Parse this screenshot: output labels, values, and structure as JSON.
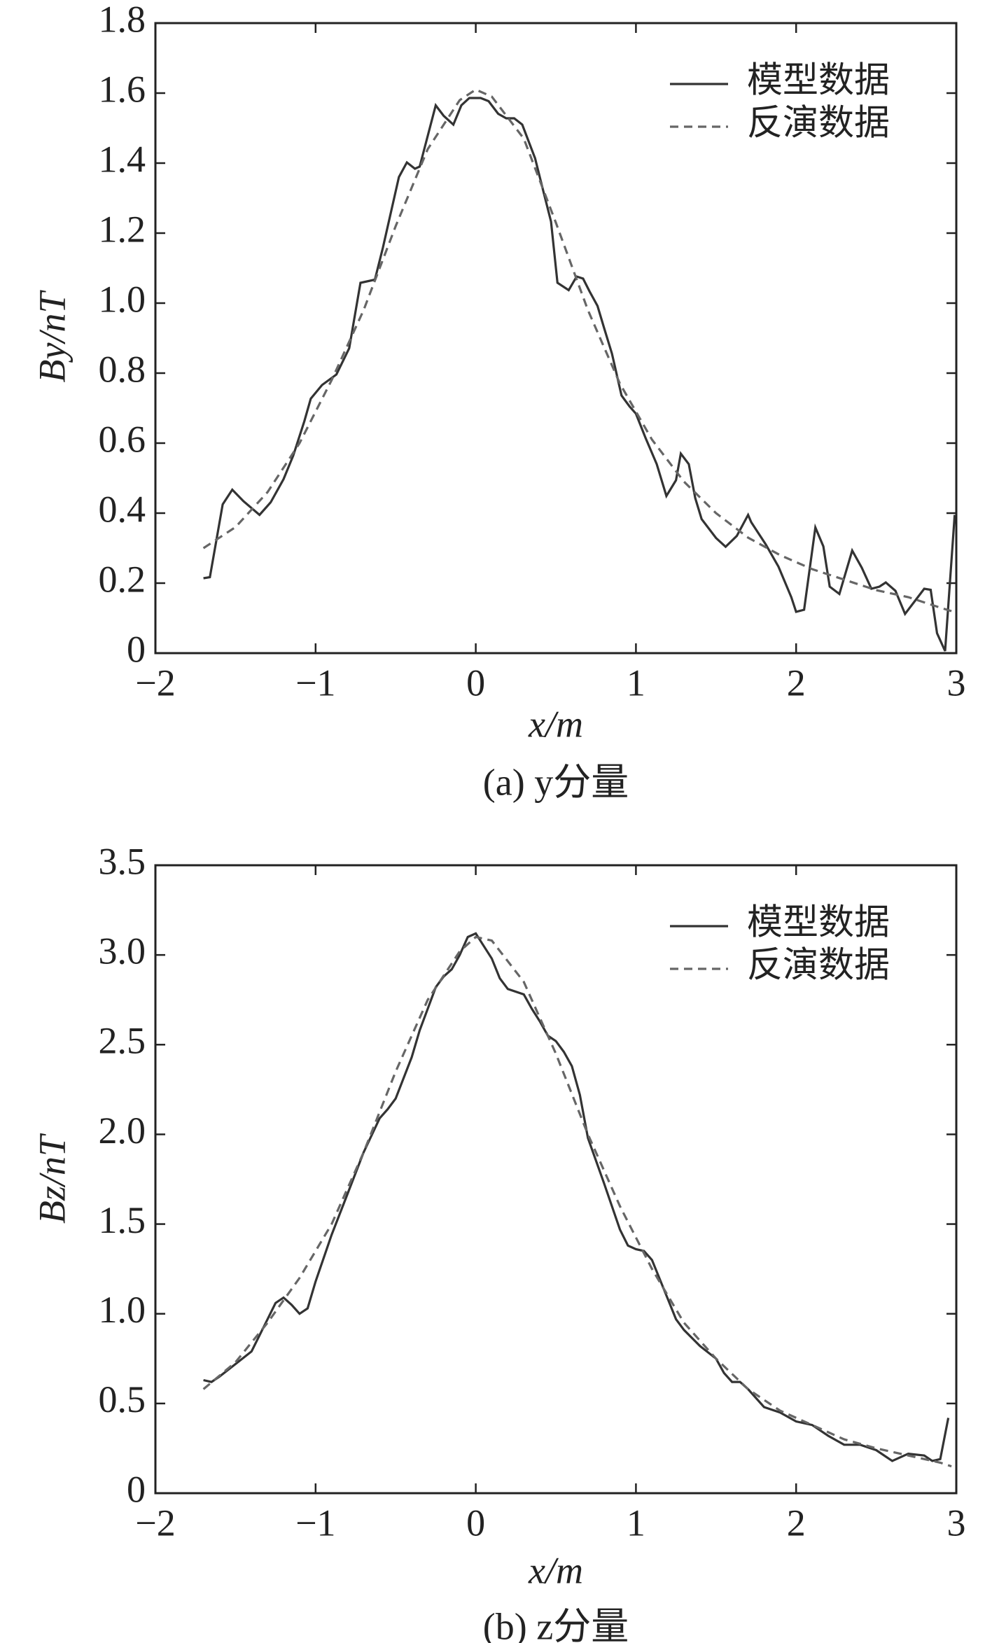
{
  "chart_data": [
    {
      "type": "line",
      "ylabel": "By/nT",
      "xlabel": "x/m",
      "caption": "(a) y分量",
      "xlim": [
        -2,
        3
      ],
      "xticks": [
        {
          "value": -2,
          "label": "−2"
        },
        {
          "value": -1,
          "label": "−1"
        },
        0,
        1,
        2,
        3
      ],
      "ylim": [
        0,
        1.8
      ],
      "yticks": [
        0,
        0.2,
        0.4,
        0.6,
        0.8,
        {
          "value": 1.0,
          "label": "1.0"
        },
        1.2,
        1.4,
        1.6,
        1.8
      ],
      "legend": "upper right",
      "series": [
        {
          "name": "模型数据",
          "color": "#333333",
          "style": "solid",
          "x": [
            -1.7,
            -1.66,
            -1.58,
            -1.52,
            -1.45,
            -1.35,
            -1.28,
            -1.2,
            -1.14,
            -1.07,
            -1.03,
            -0.96,
            -0.87,
            -0.79,
            -0.72,
            -0.63,
            -0.58,
            -0.48,
            -0.43,
            -0.38,
            -0.35,
            -0.25,
            -0.2,
            -0.14,
            -0.09,
            -0.04,
            0.03,
            0.08,
            0.14,
            0.19,
            0.24,
            0.29,
            0.37,
            0.42,
            0.47,
            0.51,
            0.58,
            0.63,
            0.67,
            0.71,
            0.76,
            0.8,
            0.85,
            0.91,
            0.96,
            1.0,
            1.06,
            1.13,
            1.19,
            1.25,
            1.28,
            1.33,
            1.37,
            1.41,
            1.5,
            1.56,
            1.63,
            1.7,
            1.72,
            1.81,
            1.89,
            1.97,
            2.0,
            2.05,
            2.12,
            2.17,
            2.21,
            2.27,
            2.35,
            2.41,
            2.47,
            2.52,
            2.56,
            2.62,
            2.68,
            2.74,
            2.8,
            2.84,
            2.88,
            2.93,
            2.99
          ],
          "values": [
            0.214,
            0.217,
            0.425,
            0.467,
            0.434,
            0.395,
            0.431,
            0.497,
            0.564,
            0.663,
            0.727,
            0.766,
            0.796,
            0.871,
            1.058,
            1.067,
            1.158,
            1.36,
            1.402,
            1.384,
            1.39,
            1.565,
            1.535,
            1.51,
            1.565,
            1.586,
            1.586,
            1.577,
            1.541,
            1.528,
            1.528,
            1.51,
            1.414,
            1.323,
            1.233,
            1.058,
            1.037,
            1.076,
            1.07,
            1.034,
            0.992,
            0.931,
            0.856,
            0.736,
            0.705,
            0.684,
            0.615,
            0.54,
            0.449,
            0.494,
            0.57,
            0.54,
            0.443,
            0.383,
            0.329,
            0.304,
            0.335,
            0.395,
            0.374,
            0.311,
            0.247,
            0.16,
            0.118,
            0.124,
            0.359,
            0.305,
            0.19,
            0.169,
            0.293,
            0.244,
            0.184,
            0.19,
            0.202,
            0.178,
            0.112,
            0.148,
            0.184,
            0.181,
            0.057,
            0.006,
            0.395
          ]
        },
        {
          "name": "反演数据",
          "color": "#666666",
          "style": "dashed",
          "x": [
            -1.7,
            -1.5,
            -1.3,
            -1.1,
            -0.9,
            -0.7,
            -0.5,
            -0.3,
            -0.1,
            0,
            0.1,
            0.3,
            0.5,
            0.7,
            0.9,
            1.1,
            1.3,
            1.5,
            1.7,
            1.9,
            2.1,
            2.3,
            2.5,
            2.7,
            2.9,
            2.97
          ],
          "values": [
            0.3,
            0.36,
            0.46,
            0.6,
            0.78,
            0.98,
            1.22,
            1.44,
            1.58,
            1.61,
            1.59,
            1.47,
            1.23,
            0.98,
            0.77,
            0.61,
            0.49,
            0.4,
            0.33,
            0.28,
            0.24,
            0.21,
            0.18,
            0.16,
            0.13,
            0.12
          ]
        }
      ]
    },
    {
      "type": "line",
      "ylabel": "Bz/nT",
      "xlabel": "x/m",
      "caption": "(b) z分量",
      "xlim": [
        -2,
        3
      ],
      "xticks": [
        {
          "value": -2,
          "label": "−2"
        },
        {
          "value": -1,
          "label": "−1"
        },
        0,
        1,
        2,
        3
      ],
      "ylim": [
        0,
        3.5
      ],
      "yticks": [
        0,
        0.5,
        {
          "value": 1.0,
          "label": "1.0"
        },
        1.5,
        {
          "value": 2.0,
          "label": "2.0"
        },
        2.5,
        {
          "value": 3.0,
          "label": "3.0"
        },
        3.5
      ],
      "legend": "upper right",
      "series": [
        {
          "name": "模型数据",
          "color": "#333333",
          "style": "solid",
          "x": [
            -1.7,
            -1.65,
            -1.6,
            -1.5,
            -1.4,
            -1.3,
            -1.25,
            -1.2,
            -1.15,
            -1.1,
            -1.05,
            -1.0,
            -0.9,
            -0.8,
            -0.7,
            -0.6,
            -0.55,
            -0.5,
            -0.4,
            -0.35,
            -0.3,
            -0.25,
            -0.2,
            -0.15,
            -0.1,
            -0.05,
            0,
            0.05,
            0.1,
            0.15,
            0.2,
            0.3,
            0.35,
            0.4,
            0.45,
            0.5,
            0.55,
            0.6,
            0.65,
            0.7,
            0.8,
            0.9,
            0.95,
            1.0,
            1.05,
            1.1,
            1.2,
            1.25,
            1.3,
            1.4,
            1.5,
            1.55,
            1.6,
            1.65,
            1.7,
            1.8,
            1.9,
            2.0,
            2.1,
            2.2,
            2.3,
            2.4,
            2.5,
            2.6,
            2.7,
            2.8,
            2.85,
            2.9,
            2.95
          ],
          "values": [
            0.63,
            0.62,
            0.65,
            0.72,
            0.79,
            0.97,
            1.06,
            1.09,
            1.05,
            1.0,
            1.03,
            1.18,
            1.44,
            1.67,
            1.9,
            2.09,
            2.14,
            2.2,
            2.43,
            2.58,
            2.7,
            2.82,
            2.88,
            2.92,
            3.0,
            3.1,
            3.12,
            3.05,
            2.98,
            2.87,
            2.81,
            2.78,
            2.7,
            2.63,
            2.55,
            2.52,
            2.46,
            2.38,
            2.22,
            1.98,
            1.73,
            1.47,
            1.38,
            1.36,
            1.35,
            1.3,
            1.08,
            0.97,
            0.91,
            0.82,
            0.75,
            0.67,
            0.62,
            0.62,
            0.58,
            0.48,
            0.45,
            0.4,
            0.38,
            0.32,
            0.27,
            0.27,
            0.24,
            0.18,
            0.22,
            0.21,
            0.18,
            0.19,
            0.42
          ]
        },
        {
          "name": "反演数据",
          "color": "#666666",
          "style": "dashed",
          "x": [
            -1.7,
            -1.5,
            -1.3,
            -1.1,
            -0.9,
            -0.7,
            -0.5,
            -0.3,
            -0.1,
            0,
            0.1,
            0.3,
            0.5,
            0.7,
            0.9,
            1.1,
            1.3,
            1.5,
            1.7,
            1.9,
            2.1,
            2.3,
            2.5,
            2.7,
            2.9,
            2.97
          ],
          "values": [
            0.58,
            0.73,
            0.95,
            1.2,
            1.5,
            1.9,
            2.35,
            2.75,
            3.02,
            3.1,
            3.08,
            2.85,
            2.45,
            2.0,
            1.6,
            1.25,
            0.95,
            0.75,
            0.58,
            0.46,
            0.38,
            0.3,
            0.25,
            0.21,
            0.17,
            0.15
          ]
        }
      ]
    }
  ]
}
